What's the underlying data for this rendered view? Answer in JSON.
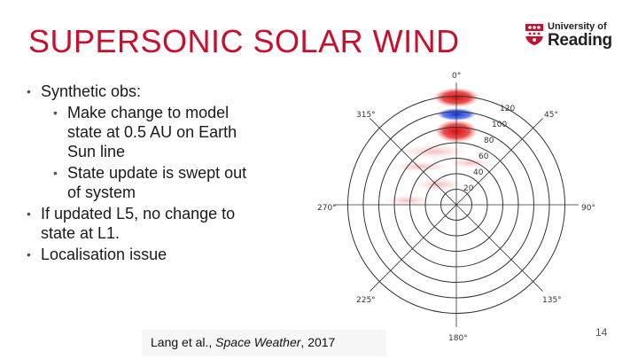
{
  "slide": {
    "title": "SUPERSONIC SOLAR WIND",
    "page_number": "14"
  },
  "logo": {
    "line1": "University of",
    "line2": "Reading"
  },
  "bullets": {
    "b1": "Synthetic obs:",
    "b1_sub1_l1": "Make change to model",
    "b1_sub1_l2": "state at 0.5 AU on Earth",
    "b1_sub1_l3": "Sun line",
    "b1_sub2_l1": "State update is swept out",
    "b1_sub2_l2": "of system",
    "b2_l1": "If updated L5, no change to",
    "b2_l2": "state at L1.",
    "b3": "Localisation issue"
  },
  "caption": {
    "authors": "Lang et al., ",
    "journal": "Space Weather",
    "year": ", 2017"
  },
  "polar_plot": {
    "angle_labels": [
      "0°",
      "45°",
      "90°",
      "135°",
      "180°",
      "225°",
      "270°",
      "315°"
    ],
    "radial_labels": [
      "20",
      "40",
      "60",
      "80",
      "100",
      "120"
    ],
    "colors": {
      "positive": "#e02020",
      "negative": "#2040e0",
      "grid": "#333333"
    }
  }
}
